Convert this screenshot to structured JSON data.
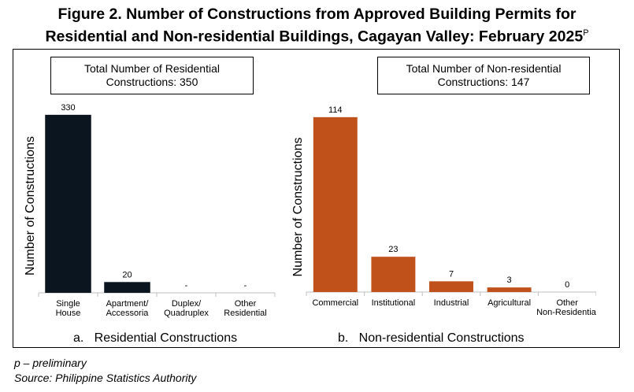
{
  "title": {
    "line1": "Figure 2. Number of Constructions from Approved Building Permits for",
    "line2": "Residential and Non-residential Buildings, Cagayan Valley: February 2025",
    "superscript": "P"
  },
  "colors": {
    "residential": "#0b1520",
    "non_residential": "#c0511a"
  },
  "panels": {
    "residential": {
      "total_line1": "Total Number of Residential",
      "total_line2": "Constructions:  350",
      "caption": "a.   Residential Constructions"
    },
    "non_residential": {
      "total_line1": "Total Number of Non-residential",
      "total_line2": "Constructions:  147",
      "caption": "b.   Non-residential Constructions"
    }
  },
  "chart_data": [
    {
      "type": "bar",
      "categories": [
        "Single\nHouse",
        "Apartment/\nAccessoria",
        "Duplex/\nQuadruplex",
        "Other\nResidential"
      ],
      "values": [
        330,
        20,
        0,
        0
      ],
      "data_labels": [
        "330",
        "20",
        "-",
        "-"
      ],
      "ylabel": "Number of Constructions",
      "ylim": [
        0,
        340
      ],
      "grid": false,
      "color": "#0b1520"
    },
    {
      "type": "bar",
      "categories": [
        "Commercial",
        "Institutional",
        "Industrial",
        "Agricultural",
        "Other\nNon-Residential"
      ],
      "values": [
        114,
        23,
        7,
        3,
        0
      ],
      "data_labels": [
        "114",
        "23",
        "7",
        "3",
        "0"
      ],
      "ylabel": "Number of Constructions",
      "ylim": [
        0,
        117
      ],
      "grid": false,
      "color": "#c0511a"
    }
  ],
  "footnotes": {
    "preliminary": "p – preliminary",
    "source": "Source: Philippine Statistics Authority"
  }
}
